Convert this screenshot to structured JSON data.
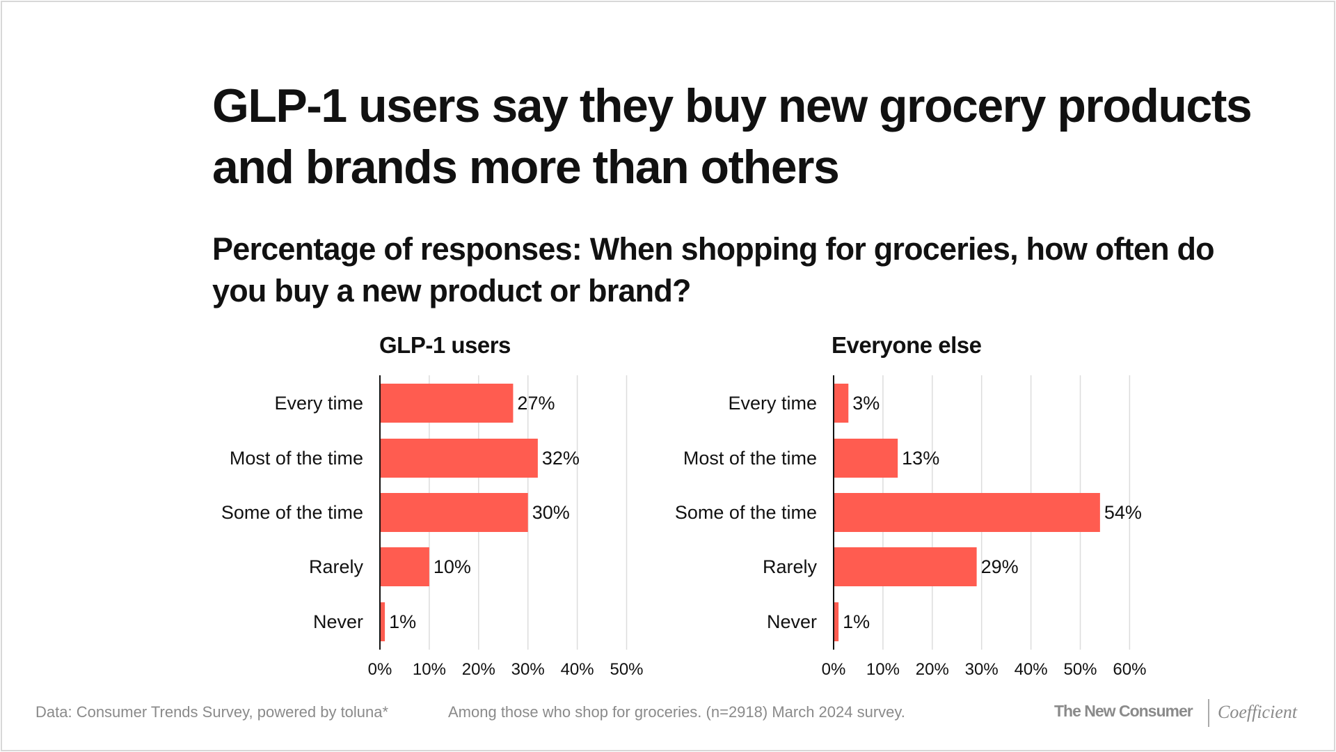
{
  "title": "GLP-1 users say they buy new grocery products and brands more than others",
  "subtitle": "Percentage of responses: When shopping for groceries, how often do you buy a new product or brand?",
  "bar_color": "#FF5C50",
  "chart_data": [
    {
      "type": "bar",
      "orientation": "horizontal",
      "title": "GLP-1 users",
      "categories": [
        "Every time",
        "Most of the time",
        "Some of the time",
        "Rarely",
        "Never"
      ],
      "values": [
        27,
        32,
        30,
        10,
        1
      ],
      "data_labels": [
        "27%",
        "32%",
        "30%",
        "10%",
        "1%"
      ],
      "xlim": [
        0,
        50
      ],
      "ticks": [
        "0%",
        "10%",
        "20%",
        "30%",
        "40%",
        "50%"
      ],
      "grid": true
    },
    {
      "type": "bar",
      "orientation": "horizontal",
      "title": "Everyone else",
      "categories": [
        "Every time",
        "Most of the time",
        "Some of the time",
        "Rarely",
        "Never"
      ],
      "values": [
        3,
        13,
        54,
        29,
        1
      ],
      "data_labels": [
        "3%",
        "13%",
        "54%",
        "29%",
        "1%"
      ],
      "xlim": [
        0,
        60
      ],
      "ticks": [
        "0%",
        "10%",
        "20%",
        "30%",
        "40%",
        "50%",
        "60%"
      ],
      "grid": true
    }
  ],
  "footer": {
    "source": "Data: Consumer Trends Survey, powered by toluna*",
    "note": "Among those who shop for groceries. (n=2918) March 2024 survey.",
    "brand_1": "The New Consumer",
    "brand_2": "Coefficient"
  }
}
